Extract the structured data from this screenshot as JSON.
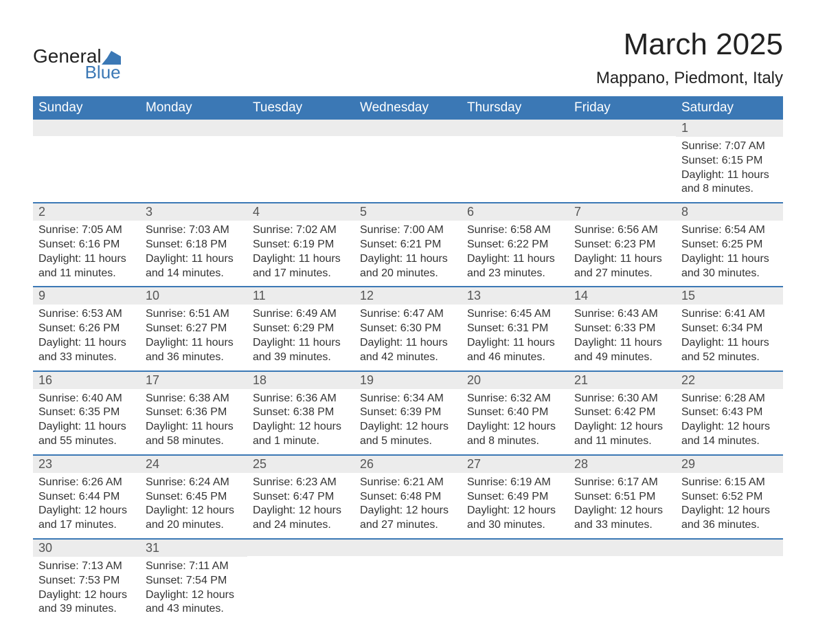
{
  "brand": {
    "line1": "General",
    "line2": "Blue"
  },
  "title": "March 2025",
  "subtitle": "Mappano, Piedmont, Italy",
  "colors": {
    "header_bg": "#3b78b5",
    "header_fg": "#ffffff",
    "daynum_bg": "#ececec",
    "row_border": "#3b78b5",
    "body_text": "#333333",
    "background": "#ffffff"
  },
  "typography": {
    "title_fontsize": 44,
    "subtitle_fontsize": 24,
    "header_fontsize": 19,
    "daynum_fontsize": 18,
    "daydata_fontsize": 16
  },
  "calendar": {
    "type": "table",
    "columns": [
      "Sunday",
      "Monday",
      "Tuesday",
      "Wednesday",
      "Thursday",
      "Friday",
      "Saturday"
    ],
    "weeks": [
      [
        {
          "day": "",
          "sunrise": "",
          "sunset": "",
          "daylight": ""
        },
        {
          "day": "",
          "sunrise": "",
          "sunset": "",
          "daylight": ""
        },
        {
          "day": "",
          "sunrise": "",
          "sunset": "",
          "daylight": ""
        },
        {
          "day": "",
          "sunrise": "",
          "sunset": "",
          "daylight": ""
        },
        {
          "day": "",
          "sunrise": "",
          "sunset": "",
          "daylight": ""
        },
        {
          "day": "",
          "sunrise": "",
          "sunset": "",
          "daylight": ""
        },
        {
          "day": "1",
          "sunrise": "Sunrise: 7:07 AM",
          "sunset": "Sunset: 6:15 PM",
          "daylight": "Daylight: 11 hours and 8 minutes."
        }
      ],
      [
        {
          "day": "2",
          "sunrise": "Sunrise: 7:05 AM",
          "sunset": "Sunset: 6:16 PM",
          "daylight": "Daylight: 11 hours and 11 minutes."
        },
        {
          "day": "3",
          "sunrise": "Sunrise: 7:03 AM",
          "sunset": "Sunset: 6:18 PM",
          "daylight": "Daylight: 11 hours and 14 minutes."
        },
        {
          "day": "4",
          "sunrise": "Sunrise: 7:02 AM",
          "sunset": "Sunset: 6:19 PM",
          "daylight": "Daylight: 11 hours and 17 minutes."
        },
        {
          "day": "5",
          "sunrise": "Sunrise: 7:00 AM",
          "sunset": "Sunset: 6:21 PM",
          "daylight": "Daylight: 11 hours and 20 minutes."
        },
        {
          "day": "6",
          "sunrise": "Sunrise: 6:58 AM",
          "sunset": "Sunset: 6:22 PM",
          "daylight": "Daylight: 11 hours and 23 minutes."
        },
        {
          "day": "7",
          "sunrise": "Sunrise: 6:56 AM",
          "sunset": "Sunset: 6:23 PM",
          "daylight": "Daylight: 11 hours and 27 minutes."
        },
        {
          "day": "8",
          "sunrise": "Sunrise: 6:54 AM",
          "sunset": "Sunset: 6:25 PM",
          "daylight": "Daylight: 11 hours and 30 minutes."
        }
      ],
      [
        {
          "day": "9",
          "sunrise": "Sunrise: 6:53 AM",
          "sunset": "Sunset: 6:26 PM",
          "daylight": "Daylight: 11 hours and 33 minutes."
        },
        {
          "day": "10",
          "sunrise": "Sunrise: 6:51 AM",
          "sunset": "Sunset: 6:27 PM",
          "daylight": "Daylight: 11 hours and 36 minutes."
        },
        {
          "day": "11",
          "sunrise": "Sunrise: 6:49 AM",
          "sunset": "Sunset: 6:29 PM",
          "daylight": "Daylight: 11 hours and 39 minutes."
        },
        {
          "day": "12",
          "sunrise": "Sunrise: 6:47 AM",
          "sunset": "Sunset: 6:30 PM",
          "daylight": "Daylight: 11 hours and 42 minutes."
        },
        {
          "day": "13",
          "sunrise": "Sunrise: 6:45 AM",
          "sunset": "Sunset: 6:31 PM",
          "daylight": "Daylight: 11 hours and 46 minutes."
        },
        {
          "day": "14",
          "sunrise": "Sunrise: 6:43 AM",
          "sunset": "Sunset: 6:33 PM",
          "daylight": "Daylight: 11 hours and 49 minutes."
        },
        {
          "day": "15",
          "sunrise": "Sunrise: 6:41 AM",
          "sunset": "Sunset: 6:34 PM",
          "daylight": "Daylight: 11 hours and 52 minutes."
        }
      ],
      [
        {
          "day": "16",
          "sunrise": "Sunrise: 6:40 AM",
          "sunset": "Sunset: 6:35 PM",
          "daylight": "Daylight: 11 hours and 55 minutes."
        },
        {
          "day": "17",
          "sunrise": "Sunrise: 6:38 AM",
          "sunset": "Sunset: 6:36 PM",
          "daylight": "Daylight: 11 hours and 58 minutes."
        },
        {
          "day": "18",
          "sunrise": "Sunrise: 6:36 AM",
          "sunset": "Sunset: 6:38 PM",
          "daylight": "Daylight: 12 hours and 1 minute."
        },
        {
          "day": "19",
          "sunrise": "Sunrise: 6:34 AM",
          "sunset": "Sunset: 6:39 PM",
          "daylight": "Daylight: 12 hours and 5 minutes."
        },
        {
          "day": "20",
          "sunrise": "Sunrise: 6:32 AM",
          "sunset": "Sunset: 6:40 PM",
          "daylight": "Daylight: 12 hours and 8 minutes."
        },
        {
          "day": "21",
          "sunrise": "Sunrise: 6:30 AM",
          "sunset": "Sunset: 6:42 PM",
          "daylight": "Daylight: 12 hours and 11 minutes."
        },
        {
          "day": "22",
          "sunrise": "Sunrise: 6:28 AM",
          "sunset": "Sunset: 6:43 PM",
          "daylight": "Daylight: 12 hours and 14 minutes."
        }
      ],
      [
        {
          "day": "23",
          "sunrise": "Sunrise: 6:26 AM",
          "sunset": "Sunset: 6:44 PM",
          "daylight": "Daylight: 12 hours and 17 minutes."
        },
        {
          "day": "24",
          "sunrise": "Sunrise: 6:24 AM",
          "sunset": "Sunset: 6:45 PM",
          "daylight": "Daylight: 12 hours and 20 minutes."
        },
        {
          "day": "25",
          "sunrise": "Sunrise: 6:23 AM",
          "sunset": "Sunset: 6:47 PM",
          "daylight": "Daylight: 12 hours and 24 minutes."
        },
        {
          "day": "26",
          "sunrise": "Sunrise: 6:21 AM",
          "sunset": "Sunset: 6:48 PM",
          "daylight": "Daylight: 12 hours and 27 minutes."
        },
        {
          "day": "27",
          "sunrise": "Sunrise: 6:19 AM",
          "sunset": "Sunset: 6:49 PM",
          "daylight": "Daylight: 12 hours and 30 minutes."
        },
        {
          "day": "28",
          "sunrise": "Sunrise: 6:17 AM",
          "sunset": "Sunset: 6:51 PM",
          "daylight": "Daylight: 12 hours and 33 minutes."
        },
        {
          "day": "29",
          "sunrise": "Sunrise: 6:15 AM",
          "sunset": "Sunset: 6:52 PM",
          "daylight": "Daylight: 12 hours and 36 minutes."
        }
      ],
      [
        {
          "day": "30",
          "sunrise": "Sunrise: 7:13 AM",
          "sunset": "Sunset: 7:53 PM",
          "daylight": "Daylight: 12 hours and 39 minutes."
        },
        {
          "day": "31",
          "sunrise": "Sunrise: 7:11 AM",
          "sunset": "Sunset: 7:54 PM",
          "daylight": "Daylight: 12 hours and 43 minutes."
        },
        {
          "day": "",
          "sunrise": "",
          "sunset": "",
          "daylight": ""
        },
        {
          "day": "",
          "sunrise": "",
          "sunset": "",
          "daylight": ""
        },
        {
          "day": "",
          "sunrise": "",
          "sunset": "",
          "daylight": ""
        },
        {
          "day": "",
          "sunrise": "",
          "sunset": "",
          "daylight": ""
        },
        {
          "day": "",
          "sunrise": "",
          "sunset": "",
          "daylight": ""
        }
      ]
    ]
  }
}
